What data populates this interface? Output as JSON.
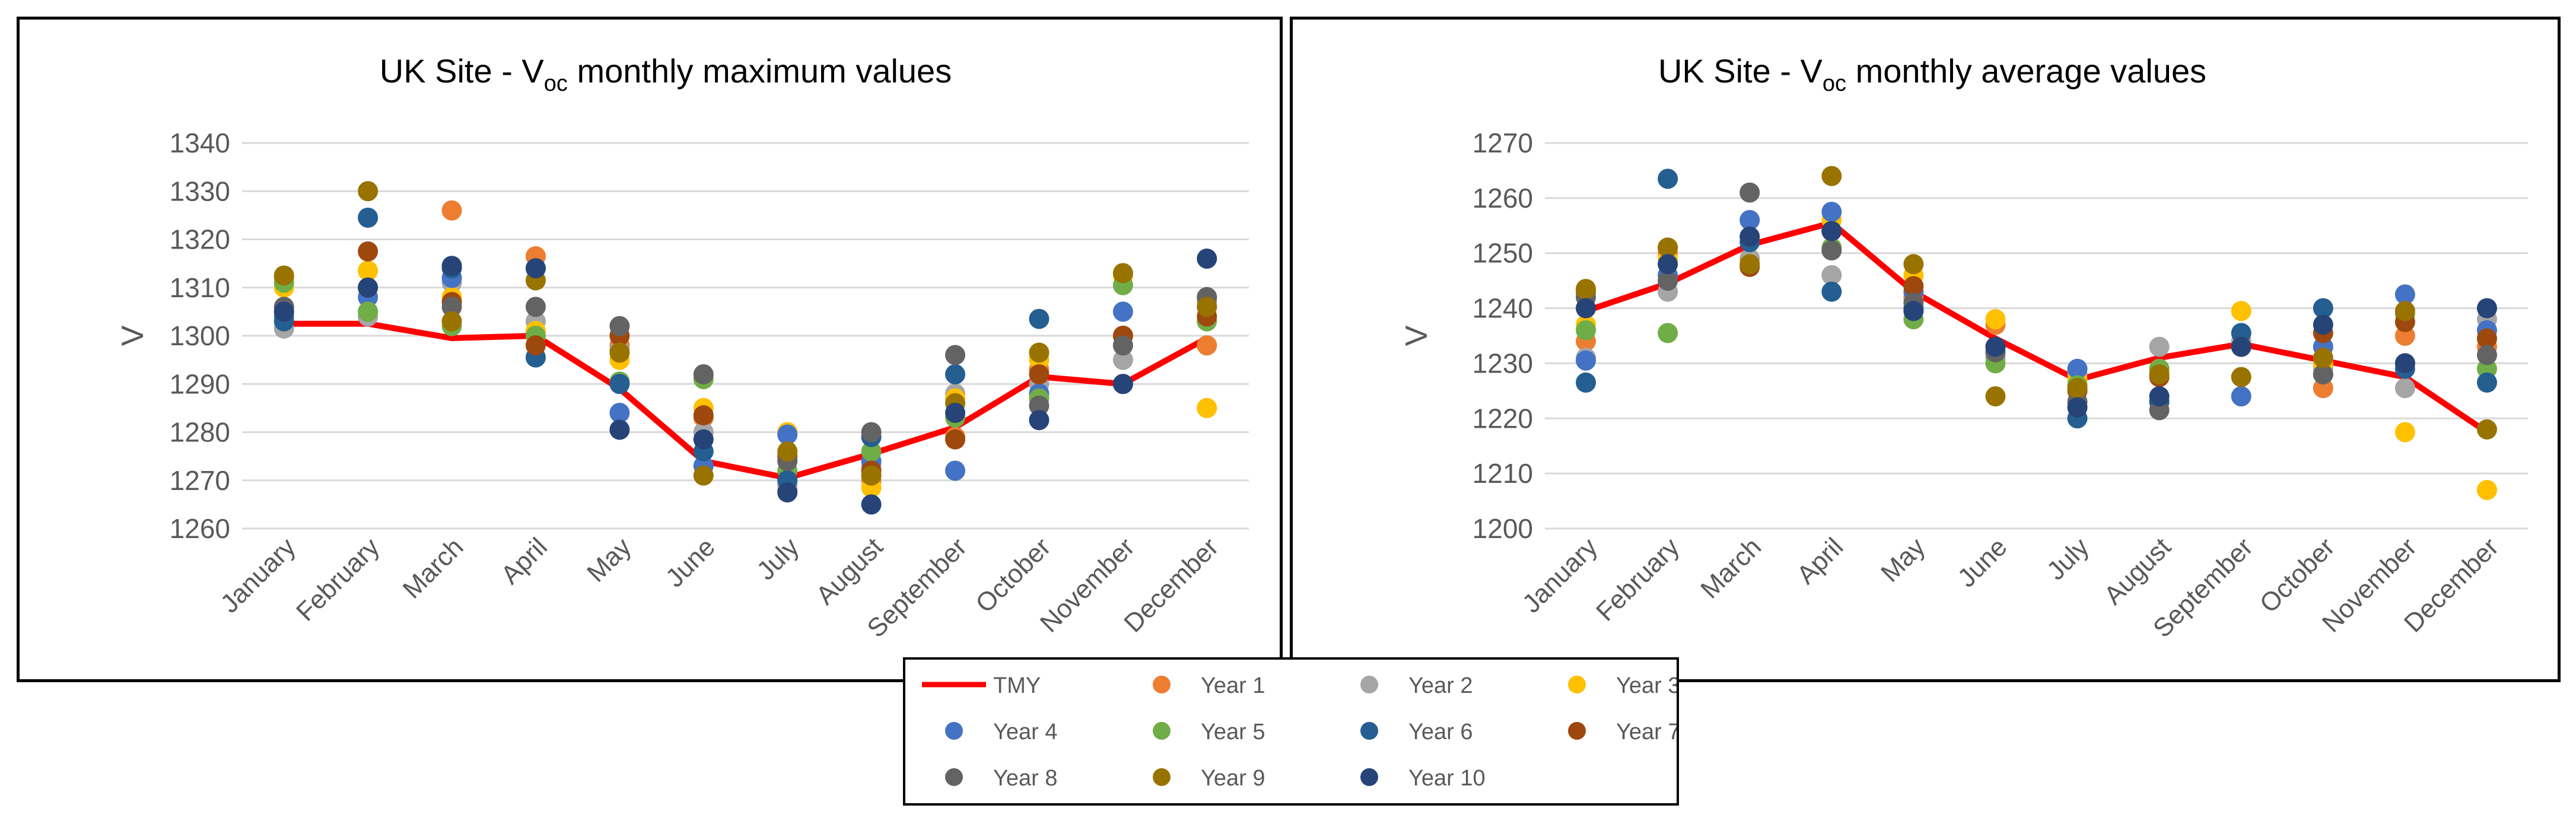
{
  "chart_data": [
    {
      "type": "scatter",
      "title": "UK Site - V",
      "title_sub": "oc",
      "title_suffix": " monthly maximum values",
      "ylabel": "V",
      "xlabel": "",
      "ylim": [
        1260,
        1340
      ],
      "yticks": [
        1260,
        1270,
        1280,
        1290,
        1300,
        1310,
        1320,
        1330,
        1340
      ],
      "grid": true,
      "categories": [
        "January",
        "February",
        "March",
        "April",
        "May",
        "June",
        "July",
        "August",
        "September",
        "October",
        "November",
        "December"
      ],
      "series": [
        {
          "name": "TMY",
          "type": "line",
          "color": "#ff0000",
          "values": [
            1302.5,
            1302.5,
            1299.5,
            1300,
            1289,
            1274,
            1270.5,
            1275.5,
            1281,
            1291.5,
            1290,
            1299.5
          ]
        },
        {
          "name": "Year 1",
          "color": "#ed7d31",
          "values": [
            1312,
            1305,
            1326,
            1316.5,
            1298,
            1283,
            1268,
            1270,
            1279,
            1293,
            1300,
            1298
          ]
        },
        {
          "name": "Year 2",
          "color": "#a5a5a5",
          "values": [
            1301.5,
            1304,
            1311,
            1303,
            1297,
            1280,
            1269,
            1273,
            1288,
            1290,
            1295,
            1307
          ]
        },
        {
          "name": "Year 3",
          "color": "#ffc000",
          "values": [
            1310,
            1313.5,
            1308,
            1301,
            1295,
            1285,
            1280,
            1268.5,
            1287,
            1295,
            1312.5,
            1285
          ]
        },
        {
          "name": "Year 4",
          "color": "#4472c4",
          "values": [
            1304,
            1308,
            1312,
            1314,
            1284,
            1273,
            1279.5,
            1274,
            1272,
            1288,
            1305,
            1306
          ]
        },
        {
          "name": "Year 5",
          "color": "#70ad47",
          "values": [
            1311,
            1305,
            1302,
            1300,
            1290.5,
            1291,
            1272,
            1276,
            1283,
            1287,
            1310.5,
            1303
          ]
        },
        {
          "name": "Year 6",
          "color": "#255e91",
          "values": [
            1303,
            1324.5,
            1314,
            1295.5,
            1290,
            1276,
            1270,
            1279,
            1292,
            1303.5,
            1290,
            1308
          ]
        },
        {
          "name": "Year 7",
          "color": "#9e480e",
          "values": [
            1305,
            1317.5,
            1307,
            1298,
            1300,
            1283.5,
            1275,
            1272,
            1278.5,
            1292,
            1300,
            1304
          ]
        },
        {
          "name": "Year 8",
          "color": "#636363",
          "values": [
            1306,
            1310,
            1306,
            1306,
            1302,
            1292,
            1274,
            1280,
            1296,
            1285.5,
            1298,
            1308
          ]
        },
        {
          "name": "Year 9",
          "color": "#997300",
          "values": [
            1312.5,
            1330,
            1303,
            1311.5,
            1296.5,
            1271,
            1276,
            1271,
            1286,
            1296.5,
            1313,
            1306
          ]
        },
        {
          "name": "Year 10",
          "color": "#264478",
          "values": [
            1305,
            1310,
            1314.5,
            1314,
            1280.5,
            1278.5,
            1267.5,
            1265,
            1284,
            1282.5,
            1290,
            1316
          ]
        }
      ]
    },
    {
      "type": "scatter",
      "title": "UK Site - V",
      "title_sub": "oc",
      "title_suffix": " monthly average values",
      "ylabel": "V",
      "xlabel": "",
      "ylim": [
        1200,
        1270
      ],
      "yticks": [
        1200,
        1210,
        1220,
        1230,
        1240,
        1250,
        1260,
        1270
      ],
      "grid": true,
      "categories": [
        "January",
        "February",
        "March",
        "April",
        "May",
        "June",
        "July",
        "August",
        "September",
        "October",
        "November",
        "December"
      ],
      "series": [
        {
          "name": "TMY",
          "type": "line",
          "color": "#ff0000",
          "values": [
            1239.5,
            1244.5,
            1251.5,
            1255.5,
            1243,
            1234.5,
            1227,
            1231,
            1233.5,
            1230.5,
            1227.5,
            1217.5
          ]
        },
        {
          "name": "Year 1",
          "color": "#ed7d31",
          "values": [
            1234,
            1250,
            1249,
            1254,
            1242,
            1237,
            1226,
            1229,
            1234,
            1225.5,
            1235,
            1233
          ]
        },
        {
          "name": "Year 2",
          "color": "#a5a5a5",
          "values": [
            1231,
            1243,
            1249,
            1246,
            1240,
            1231,
            1228,
            1233,
            1234,
            1229,
            1225.5,
            1238
          ]
        },
        {
          "name": "Year 3",
          "color": "#ffc000",
          "values": [
            1237,
            1249,
            1253,
            1256,
            1246,
            1238,
            1227,
            1228,
            1239.5,
            1230,
            1217.5,
            1207
          ]
        },
        {
          "name": "Year 4",
          "color": "#4472c4",
          "values": [
            1230.5,
            1246,
            1256,
            1257.5,
            1243,
            1232,
            1229,
            1223,
            1224,
            1233,
            1242.5,
            1236
          ]
        },
        {
          "name": "Year 5",
          "color": "#70ad47",
          "values": [
            1236,
            1235.5,
            1248,
            1251,
            1238,
            1230,
            1226,
            1229,
            1233,
            1228,
            1239,
            1229
          ]
        },
        {
          "name": "Year 6",
          "color": "#255e91",
          "values": [
            1226.5,
            1263.5,
            1252,
            1243,
            1240,
            1233,
            1220,
            1223,
            1235.5,
            1240,
            1229,
            1226.5
          ]
        },
        {
          "name": "Year 7",
          "color": "#9e480e",
          "values": [
            1243,
            1251,
            1247.5,
            1254,
            1244,
            1233,
            1225,
            1227.5,
            1233,
            1235.5,
            1237.5,
            1234.5
          ]
        },
        {
          "name": "Year 8",
          "color": "#636363",
          "values": [
            1242,
            1245,
            1261,
            1250.5,
            1241,
            1232,
            1223,
            1221.5,
            1233,
            1228,
            1230,
            1231.5
          ]
        },
        {
          "name": "Year 9",
          "color": "#997300",
          "values": [
            1243.5,
            1251,
            1248,
            1264,
            1248,
            1224,
            1225.5,
            1228,
            1227.5,
            1231,
            1239.5,
            1218
          ]
        },
        {
          "name": "Year 10",
          "color": "#264478",
          "values": [
            1240,
            1248,
            1253,
            1254,
            1239.5,
            1233,
            1222,
            1224,
            1233,
            1237,
            1230,
            1240
          ]
        }
      ]
    }
  ],
  "legend": {
    "items": [
      {
        "label": "TMY",
        "kind": "line",
        "color": "#ff0000"
      },
      {
        "label": "Year 1",
        "kind": "marker",
        "color": "#ed7d31"
      },
      {
        "label": "Year 2",
        "kind": "marker",
        "color": "#a5a5a5"
      },
      {
        "label": "Year 3",
        "kind": "marker",
        "color": "#ffc000"
      },
      {
        "label": "Year 4",
        "kind": "marker",
        "color": "#4472c4"
      },
      {
        "label": "Year 5",
        "kind": "marker",
        "color": "#70ad47"
      },
      {
        "label": "Year 6",
        "kind": "marker",
        "color": "#255e91"
      },
      {
        "label": "Year 7",
        "kind": "marker",
        "color": "#9e480e"
      },
      {
        "label": "Year 8",
        "kind": "marker",
        "color": "#636363"
      },
      {
        "label": "Year 9",
        "kind": "marker",
        "color": "#997300"
      },
      {
        "label": "Year 10",
        "kind": "marker",
        "color": "#264478"
      }
    ]
  }
}
